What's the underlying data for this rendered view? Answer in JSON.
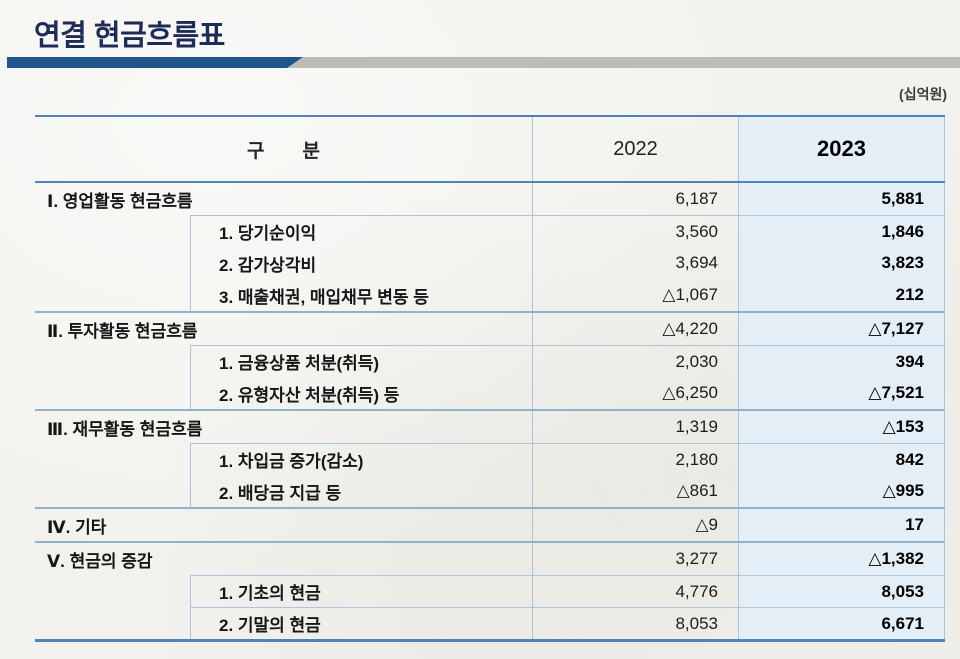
{
  "page": {
    "title": "연결 현금흐름표",
    "unit_label": "(십억원)"
  },
  "colors": {
    "title_navy": "#1e2b57",
    "bar_blue": "#1f578c",
    "bar_gray": "#bdbcb7",
    "border_strong": "#4e85b6",
    "border_medium": "#8fb2cc",
    "border_light": "#abc6dc",
    "col2023_bg": "#e4eef7",
    "paper": "#f2f1ed"
  },
  "table": {
    "header": {
      "category": "구　　분",
      "y2022": "2022",
      "y2023": "2023"
    },
    "rows": [
      {
        "type": "group",
        "label": "Ⅰ. 영업활동 현금흐름",
        "v2022": "6,187",
        "v2023": "5,881"
      },
      {
        "type": "sub",
        "label": "1. 당기순이익",
        "v2022": "3,560",
        "v2023": "1,846"
      },
      {
        "type": "sub",
        "label": "2. 감가상각비",
        "v2022": "3,694",
        "v2023": "3,823"
      },
      {
        "type": "sub",
        "label": "3. 매출채권, 매입채무 변동 등",
        "v2022": "△1,067",
        "v2023": "212"
      },
      {
        "type": "group",
        "label": "Ⅱ. 투자활동 현금흐름",
        "v2022": "△4,220",
        "v2023": "△7,127"
      },
      {
        "type": "sub",
        "label": "1. 금융상품 처분(취득)",
        "v2022": "2,030",
        "v2023": "394"
      },
      {
        "type": "sub",
        "label": "2. 유형자산 처분(취득) 등",
        "v2022": "△6,250",
        "v2023": "△7,521"
      },
      {
        "type": "group",
        "label": "Ⅲ. 재무활동 현금흐름",
        "v2022": "1,319",
        "v2023": "△153"
      },
      {
        "type": "sub",
        "label": "1. 차입금 증가(감소)",
        "v2022": "2,180",
        "v2023": "842"
      },
      {
        "type": "sub",
        "label": "2. 배당금 지급 등",
        "v2022": "△861",
        "v2023": "△995"
      },
      {
        "type": "group",
        "label": "Ⅳ. 기타",
        "v2022": "△9",
        "v2023": "17"
      },
      {
        "type": "group",
        "label": "Ⅴ. 현금의 증감",
        "v2022": "3,277",
        "v2023": "△1,382"
      },
      {
        "type": "sub",
        "label": "1. 기초의 현금",
        "v2022": "4,776",
        "v2023": "8,053"
      },
      {
        "type": "sub",
        "label": "2. 기말의 현금",
        "v2022": "8,053",
        "v2023": "6,671"
      }
    ]
  }
}
